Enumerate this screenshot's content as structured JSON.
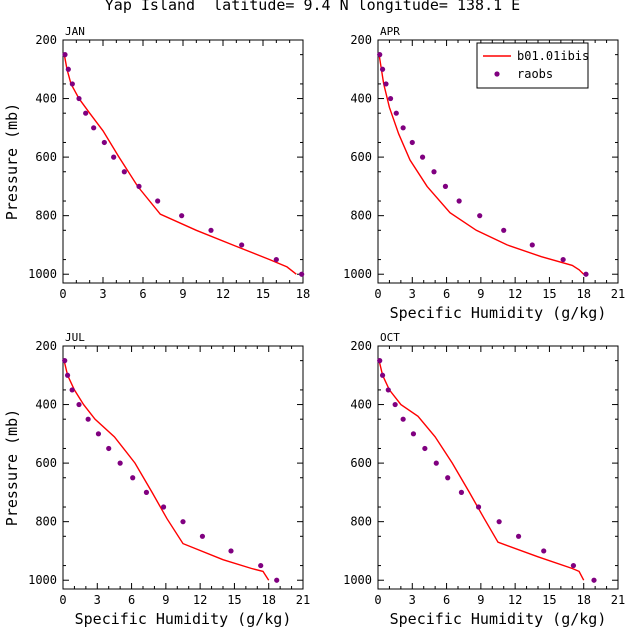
{
  "title": "Yap Island  latitude= 9.4 N longitude= 138.1 E",
  "legend": [
    {
      "label": "b01.01ibis",
      "kind": "line",
      "color": "#ff0000"
    },
    {
      "label": "raobs",
      "kind": "marker",
      "color": "#800080"
    }
  ],
  "chart_data": [
    {
      "type": "line",
      "panel_label": "JAN",
      "xlabel": "",
      "ylabel": "Pressure (mb)",
      "xlim": [
        0,
        18
      ],
      "xticks": [
        0,
        3,
        6,
        9,
        12,
        15,
        18
      ],
      "ylim": [
        200,
        1030
      ],
      "yticks": [
        200,
        400,
        600,
        800,
        1000
      ],
      "y_reversed": true,
      "series": [
        {
          "name": "b01.01ibis",
          "kind": "line",
          "color": "#ff0000",
          "x": [
            0.1,
            0.3,
            0.6,
            1.2,
            2.0,
            3.0,
            4.2,
            5.6,
            7.3,
            10.0,
            13.0,
            15.5,
            16.8,
            17.5
          ],
          "y": [
            250,
            300,
            350,
            400,
            450,
            510,
            600,
            700,
            795,
            850,
            905,
            950,
            975,
            1000
          ]
        },
        {
          "name": "raobs",
          "kind": "scatter",
          "color": "#800080",
          "x": [
            0.15,
            0.4,
            0.7,
            1.2,
            1.7,
            2.3,
            3.1,
            3.8,
            4.6,
            5.7,
            7.1,
            8.9,
            11.1,
            13.4,
            16.0,
            17.9
          ],
          "y": [
            250,
            300,
            350,
            400,
            450,
            500,
            550,
            600,
            650,
            700,
            750,
            800,
            850,
            900,
            950,
            1000
          ]
        }
      ]
    },
    {
      "type": "line",
      "panel_label": "APR",
      "xlabel": "Specific Humidity (g/kg)",
      "ylabel": "",
      "xlim": [
        0,
        21
      ],
      "xticks": [
        0,
        3,
        6,
        9,
        12,
        15,
        18,
        21
      ],
      "ylim": [
        200,
        1030
      ],
      "yticks": [
        200,
        400,
        600,
        800,
        1000
      ],
      "y_reversed": true,
      "series": [
        {
          "name": "b01.01ibis",
          "kind": "line",
          "color": "#ff0000",
          "x": [
            0.1,
            0.3,
            0.5,
            1.0,
            1.8,
            2.8,
            4.3,
            6.3,
            8.6,
            11.3,
            14.3,
            17.0,
            17.6,
            18.0
          ],
          "y": [
            250,
            300,
            350,
            430,
            520,
            610,
            700,
            790,
            850,
            900,
            940,
            970,
            985,
            1000
          ]
        },
        {
          "name": "raobs",
          "kind": "scatter",
          "color": "#800080",
          "x": [
            0.15,
            0.4,
            0.7,
            1.1,
            1.6,
            2.2,
            3.0,
            3.9,
            4.9,
            5.9,
            7.1,
            8.9,
            11.0,
            13.5,
            16.2,
            18.2
          ],
          "y": [
            250,
            300,
            350,
            400,
            450,
            500,
            550,
            600,
            650,
            700,
            750,
            800,
            850,
            900,
            950,
            1000
          ]
        }
      ]
    },
    {
      "type": "line",
      "panel_label": "JUL",
      "xlabel": "Specific Humidity (g/kg)",
      "ylabel": "Pressure (mb)",
      "xlim": [
        0,
        21
      ],
      "xticks": [
        0,
        3,
        6,
        9,
        12,
        15,
        18,
        21
      ],
      "ylim": [
        200,
        1030
      ],
      "yticks": [
        200,
        400,
        600,
        800,
        1000
      ],
      "y_reversed": true,
      "series": [
        {
          "name": "b01.01ibis",
          "kind": "line",
          "color": "#ff0000",
          "x": [
            0.1,
            0.4,
            1.0,
            1.8,
            2.8,
            4.5,
            6.3,
            7.8,
            9.1,
            10.5,
            14.0,
            16.5,
            17.5,
            18.0
          ],
          "y": [
            250,
            300,
            350,
            400,
            450,
            510,
            600,
            700,
            790,
            875,
            930,
            960,
            970,
            1000
          ]
        },
        {
          "name": "raobs",
          "kind": "scatter",
          "color": "#800080",
          "x": [
            0.15,
            0.4,
            0.8,
            1.4,
            2.2,
            3.1,
            4.0,
            5.0,
            6.1,
            7.3,
            8.8,
            10.5,
            12.2,
            14.7,
            17.3,
            18.7
          ],
          "y": [
            250,
            300,
            350,
            400,
            450,
            500,
            550,
            600,
            650,
            700,
            750,
            800,
            850,
            900,
            950,
            1000
          ]
        }
      ]
    },
    {
      "type": "line",
      "panel_label": "OCT",
      "xlabel": "Specific Humidity (g/kg)",
      "ylabel": "",
      "xlim": [
        0,
        21
      ],
      "xticks": [
        0,
        3,
        6,
        9,
        12,
        15,
        18,
        21
      ],
      "ylim": [
        200,
        1030
      ],
      "yticks": [
        200,
        400,
        600,
        800,
        1000
      ],
      "y_reversed": true,
      "series": [
        {
          "name": "b01.01ibis",
          "kind": "line",
          "color": "#ff0000",
          "x": [
            0.1,
            0.4,
            1.0,
            2.0,
            3.5,
            5.0,
            6.5,
            8.0,
            9.3,
            10.5,
            14.0,
            17.0,
            17.6,
            18.0
          ],
          "y": [
            250,
            300,
            350,
            400,
            440,
            510,
            600,
            700,
            790,
            870,
            920,
            960,
            970,
            1000
          ]
        },
        {
          "name": "raobs",
          "kind": "scatter",
          "color": "#800080",
          "x": [
            0.15,
            0.4,
            0.9,
            1.5,
            2.2,
            3.1,
            4.1,
            5.1,
            6.1,
            7.3,
            8.8,
            10.6,
            12.3,
            14.5,
            17.1,
            18.9
          ],
          "y": [
            250,
            300,
            350,
            400,
            450,
            500,
            550,
            600,
            650,
            700,
            750,
            800,
            850,
            900,
            950,
            1000
          ]
        }
      ]
    }
  ]
}
